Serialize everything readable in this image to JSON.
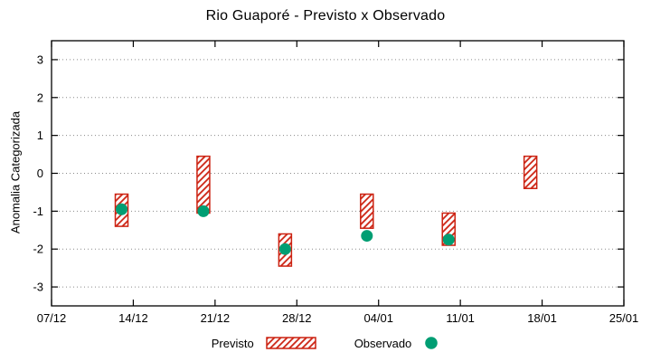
{
  "title": "Rio Guaporé - Previsto x Observado",
  "chart_data": {
    "type": "bar",
    "title": "Rio Guaporé - Previsto x Observado",
    "xlabel": "",
    "ylabel": "Anomalia Categorizada",
    "ylim": [
      -3.5,
      3.5
    ],
    "y_ticks": [
      -3,
      -2,
      -1,
      0,
      1,
      2,
      3
    ],
    "x_ticks": [
      "07/12",
      "14/12",
      "21/12",
      "28/12",
      "04/01",
      "11/01",
      "18/01",
      "25/01"
    ],
    "x_tick_days": [
      0,
      7,
      14,
      21,
      28,
      35,
      42,
      49
    ],
    "x_range_days": [
      0,
      49
    ],
    "grid": "horizontal-dotted",
    "legend_position": "bottom-center",
    "series": [
      {
        "name": "Previsto",
        "style": "range-bar-hatched",
        "points": [
          {
            "date": "13/12",
            "x_day": 6,
            "low": -1.4,
            "high": -0.55
          },
          {
            "date": "20/12",
            "x_day": 13,
            "low": -1.05,
            "high": 0.45
          },
          {
            "date": "27/12",
            "x_day": 20,
            "low": -2.45,
            "high": -1.6
          },
          {
            "date": "03/01",
            "x_day": 27,
            "low": -1.45,
            "high": -0.55
          },
          {
            "date": "10/01",
            "x_day": 34,
            "low": -1.9,
            "high": -1.05
          },
          {
            "date": "17/01",
            "x_day": 41,
            "low": -0.4,
            "high": 0.45
          }
        ]
      },
      {
        "name": "Observado",
        "style": "filled-dot",
        "points": [
          {
            "date": "13/12",
            "x_day": 6,
            "value": -0.95
          },
          {
            "date": "20/12",
            "x_day": 13,
            "value": -1.0
          },
          {
            "date": "27/12",
            "x_day": 20,
            "value": -2.0
          },
          {
            "date": "03/01",
            "x_day": 27,
            "value": -1.65
          },
          {
            "date": "10/01",
            "x_day": 34,
            "value": -1.75
          }
        ]
      }
    ]
  },
  "colors": {
    "previsto": "#cc2211",
    "observado": "#009e73",
    "grid": "#8a8a8a",
    "axis": "#000000",
    "background": "#ffffff"
  }
}
